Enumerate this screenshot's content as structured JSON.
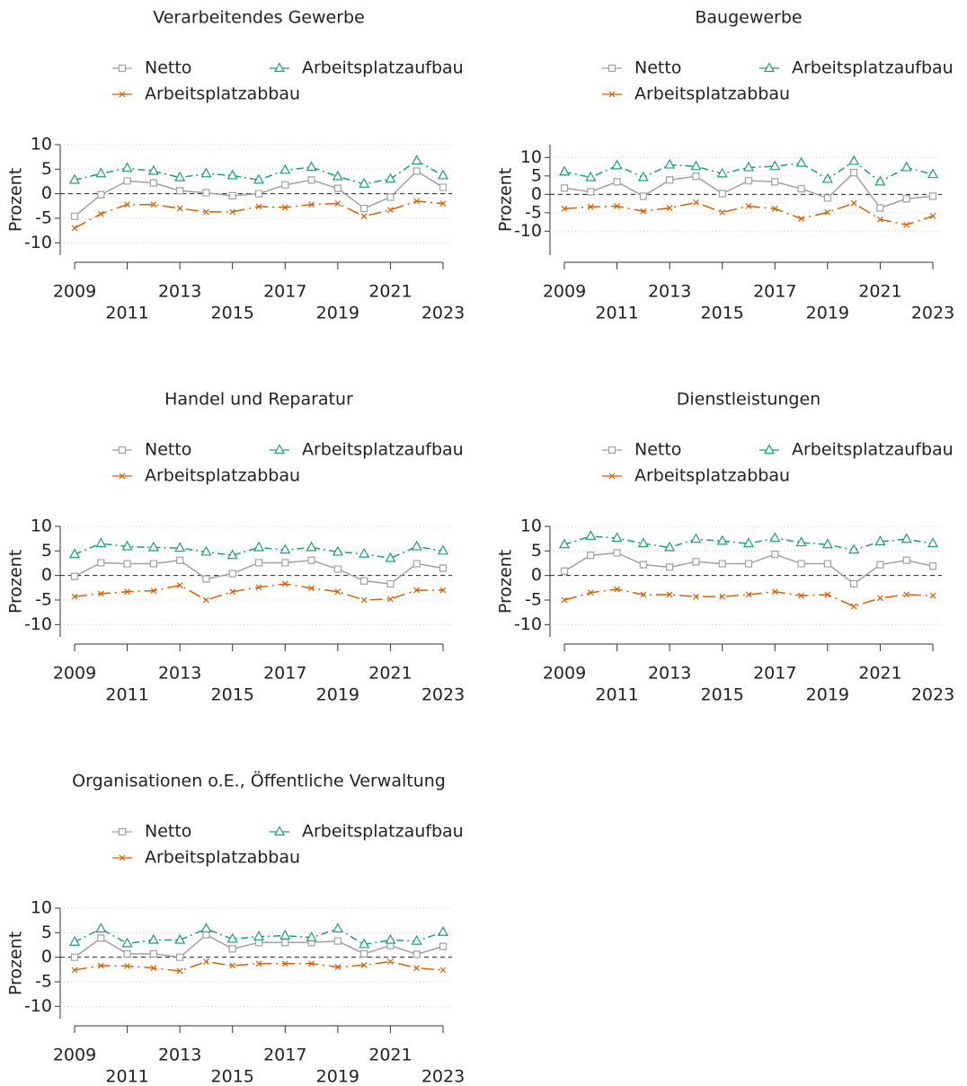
{
  "chart_data": [
    {
      "type": "line",
      "title": "Verarbeitendes Gewerbe",
      "ylabel": "Prozent",
      "x": [
        2009,
        2010,
        2011,
        2012,
        2013,
        2014,
        2015,
        2016,
        2017,
        2018,
        2019,
        2020,
        2021,
        2022,
        2023
      ],
      "xlim": [
        2009,
        2023
      ],
      "xticks": [
        2009,
        2011,
        2013,
        2015,
        2017,
        2019,
        2021,
        2023
      ],
      "ylim": [
        -12.5,
        10
      ],
      "yticks": [
        10,
        5,
        0,
        -5,
        -10
      ],
      "grid": true,
      "zero_line": true,
      "series": [
        {
          "name": "Netto",
          "color": "#a0a0a0",
          "marker": "square",
          "linestyle": "solid",
          "values": [
            -4.6,
            -0.2,
            2.6,
            2.2,
            0.6,
            0.2,
            -0.4,
            0,
            1.8,
            2.8,
            1.1,
            -3,
            -0.7,
            4.6,
            1.3
          ]
        },
        {
          "name": "Arbeitsplatzaufbau",
          "color": "#1b9e77",
          "marker": "triangle",
          "linestyle": "dashdot",
          "values": [
            2.8,
            4.1,
            5.2,
            4.6,
            3.3,
            4.1,
            3.7,
            2.8,
            4.8,
            5.4,
            3.5,
            2,
            3,
            6.7,
            3.7
          ]
        },
        {
          "name": "Arbeitsplatzabbau",
          "color": "#d95f02",
          "marker": "x",
          "linestyle": "longdashdot",
          "values": [
            -7,
            -4.1,
            -2.2,
            -2.2,
            -3,
            -3.7,
            -3.7,
            -2.6,
            -2.8,
            -2.2,
            -2,
            -4.6,
            -3.3,
            -1.5,
            -2
          ]
        }
      ]
    },
    {
      "type": "line",
      "title": "Baugewerbe",
      "ylabel": "Prozent",
      "x": [
        2009,
        2010,
        2011,
        2012,
        2013,
        2014,
        2015,
        2016,
        2017,
        2018,
        2019,
        2020,
        2021,
        2022,
        2023
      ],
      "xlim": [
        2009,
        2023
      ],
      "xticks": [
        2009,
        2011,
        2013,
        2015,
        2017,
        2019,
        2021,
        2023
      ],
      "ylim": [
        -16.5,
        13.5
      ],
      "yticks": [
        10,
        5,
        0,
        -5,
        -10
      ],
      "grid": true,
      "zero_line": true,
      "series": [
        {
          "name": "Netto",
          "color": "#a0a0a0",
          "marker": "square",
          "linestyle": "solid",
          "values": [
            1.7,
            0.7,
            3.4,
            -0.5,
            3.9,
            4.9,
            0.2,
            3.7,
            3.4,
            1.5,
            -1,
            5.9,
            -3.7,
            -1.2,
            -0.5
          ]
        },
        {
          "name": "Arbeitsplatzaufbau",
          "color": "#1b9e77",
          "marker": "triangle",
          "linestyle": "dashdot",
          "values": [
            6.1,
            4.6,
            7.8,
            4.6,
            8,
            7.6,
            5.6,
            7.3,
            7.6,
            8.5,
            4.1,
            9,
            3.4,
            7.3,
            5.4
          ]
        },
        {
          "name": "Arbeitsplatzabbau",
          "color": "#d95f02",
          "marker": "x",
          "linestyle": "longdashdot",
          "values": [
            -3.9,
            -3.4,
            -3.2,
            -4.6,
            -3.7,
            -2.2,
            -4.9,
            -3.2,
            -3.9,
            -6.6,
            -4.9,
            -2.4,
            -6.8,
            -8.3,
            -5.9
          ]
        }
      ]
    },
    {
      "type": "line",
      "title": "Handel und Reparatur",
      "ylabel": "Prozent",
      "x": [
        2009,
        2010,
        2011,
        2012,
        2013,
        2014,
        2015,
        2016,
        2017,
        2018,
        2019,
        2020,
        2021,
        2022,
        2023
      ],
      "xlim": [
        2009,
        2023
      ],
      "xticks": [
        2009,
        2011,
        2013,
        2015,
        2017,
        2019,
        2021,
        2023
      ],
      "ylim": [
        -12.5,
        10
      ],
      "yticks": [
        10,
        5,
        0,
        -5,
        -10
      ],
      "grid": true,
      "zero_line": true,
      "series": [
        {
          "name": "Netto",
          "color": "#a0a0a0",
          "marker": "square",
          "linestyle": "solid",
          "values": [
            -0.2,
            2.6,
            2.4,
            2.4,
            3.1,
            -0.7,
            0.4,
            2.6,
            2.6,
            3.1,
            1.3,
            -1.1,
            -1.7,
            2.4,
            1.5
          ]
        },
        {
          "name": "Arbeitsplatzaufbau",
          "color": "#1b9e77",
          "marker": "triangle",
          "linestyle": "dashdot",
          "values": [
            4.3,
            6.5,
            5.9,
            5.7,
            5.6,
            4.8,
            4.1,
            5.7,
            5.2,
            5.7,
            4.8,
            4.4,
            3.5,
            5.9,
            5
          ]
        },
        {
          "name": "Arbeitsplatzabbau",
          "color": "#d95f02",
          "marker": "x",
          "linestyle": "longdashdot",
          "values": [
            -4.3,
            -3.7,
            -3.3,
            -3.1,
            -2,
            -5,
            -3.3,
            -2.4,
            -1.7,
            -2.6,
            -3.3,
            -5,
            -4.8,
            -3,
            -3
          ]
        }
      ]
    },
    {
      "type": "line",
      "title": "Dienstleistungen",
      "ylabel": "Prozent",
      "x": [
        2009,
        2010,
        2011,
        2012,
        2013,
        2014,
        2015,
        2016,
        2017,
        2018,
        2019,
        2020,
        2021,
        2022,
        2023
      ],
      "xlim": [
        2009,
        2023
      ],
      "xticks": [
        2009,
        2011,
        2013,
        2015,
        2017,
        2019,
        2021,
        2023
      ],
      "ylim": [
        -12.5,
        10
      ],
      "yticks": [
        10,
        5,
        0,
        -5,
        -10
      ],
      "grid": true,
      "zero_line": true,
      "series": [
        {
          "name": "Netto",
          "color": "#a0a0a0",
          "marker": "square",
          "linestyle": "solid",
          "values": [
            0.9,
            4.1,
            4.6,
            2.2,
            1.7,
            2.8,
            2.4,
            2.4,
            4.3,
            2.4,
            2.4,
            -1.7,
            2.2,
            3.1,
            1.9
          ]
        },
        {
          "name": "Arbeitsplatzaufbau",
          "color": "#1b9e77",
          "marker": "triangle",
          "linestyle": "dashdot",
          "values": [
            6.3,
            8,
            7.6,
            6.5,
            5.7,
            7.4,
            7,
            6.5,
            7.6,
            6.7,
            6.3,
            5.2,
            6.9,
            7.4,
            6.5
          ]
        },
        {
          "name": "Arbeitsplatzabbau",
          "color": "#d95f02",
          "marker": "x",
          "linestyle": "longdashdot",
          "values": [
            -5,
            -3.5,
            -2.8,
            -3.9,
            -3.9,
            -4.3,
            -4.3,
            -3.9,
            -3.3,
            -4.1,
            -3.9,
            -6.3,
            -4.6,
            -3.9,
            -4.1
          ]
        }
      ]
    },
    {
      "type": "line",
      "title": "Organisationen o.E., Öffentliche Verwaltung",
      "ylabel": "Prozent",
      "x": [
        2009,
        2010,
        2011,
        2012,
        2013,
        2014,
        2015,
        2016,
        2017,
        2018,
        2019,
        2020,
        2021,
        2022,
        2023
      ],
      "xlim": [
        2009,
        2023
      ],
      "xticks": [
        2009,
        2011,
        2013,
        2015,
        2017,
        2019,
        2021,
        2023
      ],
      "ylim": [
        -12.5,
        10
      ],
      "yticks": [
        10,
        5,
        0,
        -5,
        -10
      ],
      "grid": true,
      "zero_line": true,
      "series": [
        {
          "name": "Netto",
          "color": "#a0a0a0",
          "marker": "square",
          "linestyle": "solid",
          "values": [
            0,
            3.9,
            0.7,
            0.7,
            0,
            4.6,
            1.7,
            3,
            3,
            3,
            3.3,
            0.7,
            2.4,
            0.6,
            2.2
          ]
        },
        {
          "name": "Arbeitsplatzaufbau",
          "color": "#1b9e77",
          "marker": "triangle",
          "linestyle": "dashdot",
          "values": [
            3.1,
            5.8,
            2.8,
            3.5,
            3.5,
            5.8,
            3.7,
            4.2,
            4.4,
            4,
            5.8,
            2.6,
            3.5,
            3.3,
            5.1
          ]
        },
        {
          "name": "Arbeitsplatzabbau",
          "color": "#d95f02",
          "marker": "x",
          "linestyle": "longdashdot",
          "values": [
            -2.6,
            -1.7,
            -1.8,
            -2.2,
            -2.8,
            -0.9,
            -1.7,
            -1.3,
            -1.3,
            -1.3,
            -2,
            -1.6,
            -0.9,
            -2.2,
            -2.6
          ]
        }
      ]
    }
  ]
}
